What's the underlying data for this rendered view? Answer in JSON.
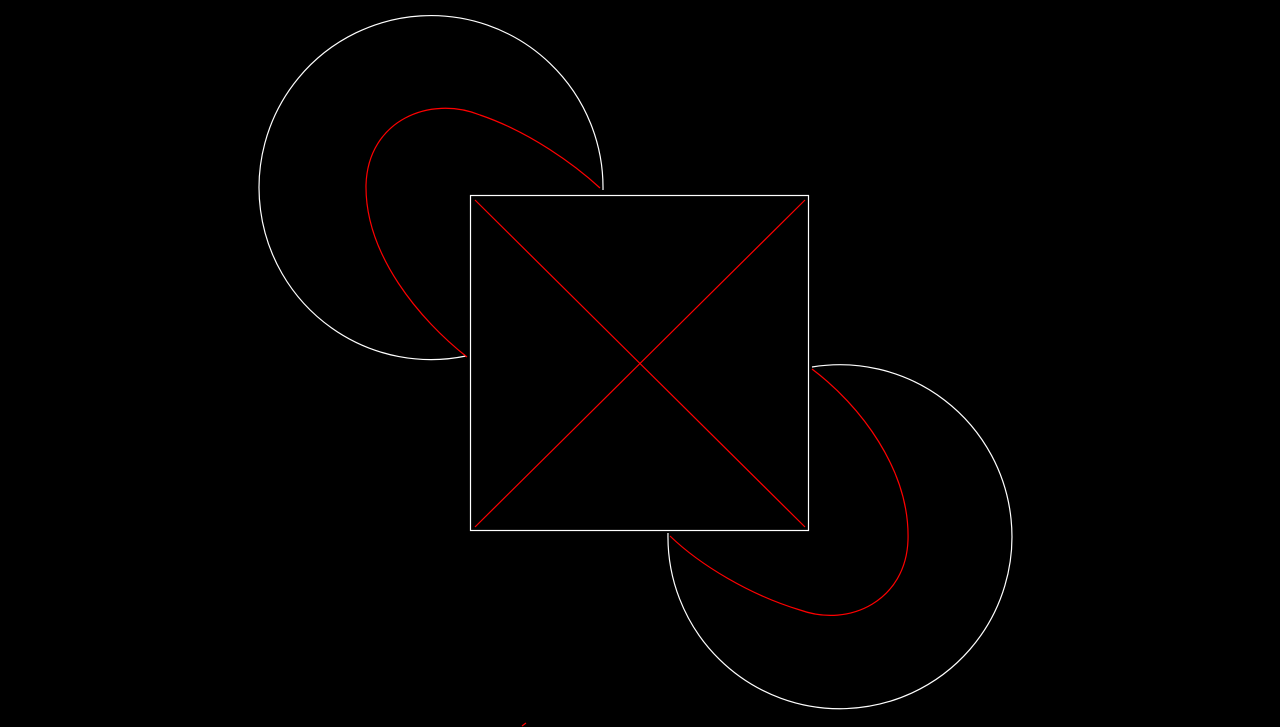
{
  "canvas": {
    "background_color": "#000000"
  },
  "colors": {
    "outline": "#ffffff",
    "construction": "#ff0000"
  },
  "shapes": [
    {
      "name": "square-outline",
      "kind": "rectangle",
      "color": "outline"
    },
    {
      "name": "diagonal-line-1",
      "kind": "line",
      "color": "construction"
    },
    {
      "name": "diagonal-line-2",
      "kind": "line",
      "color": "construction"
    },
    {
      "name": "upper-left-arc",
      "kind": "arc",
      "color": "outline"
    },
    {
      "name": "upper-left-inner-curve",
      "kind": "curve",
      "color": "construction"
    },
    {
      "name": "lower-right-arc",
      "kind": "arc",
      "color": "outline"
    },
    {
      "name": "lower-right-inner-curve",
      "kind": "curve",
      "color": "construction"
    }
  ]
}
